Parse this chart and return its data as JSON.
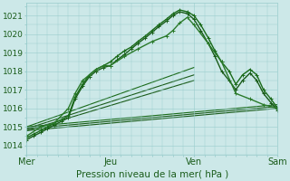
{
  "bg_color": "#cce8e8",
  "grid_color": "#99cccc",
  "line_color": "#1a5c1a",
  "xlim": [
    0,
    3
  ],
  "ylim": [
    1013.5,
    1021.7
  ],
  "yticks": [
    1014,
    1015,
    1016,
    1017,
    1018,
    1019,
    1020,
    1021
  ],
  "xtick_labels": [
    "Mer",
    "Jeu",
    "Ven",
    "Sam"
  ],
  "xtick_positions": [
    0,
    1,
    2,
    3
  ],
  "xlabel": "Pression niveau de la mer( hPa )",
  "xlabel_fontsize": 7.5,
  "ytick_fontsize": 6.5,
  "xtick_fontsize": 7,
  "figwidth": 3.2,
  "figheight": 2.0,
  "dpi": 100,
  "marker_lines": [
    {
      "x": [
        0.0,
        0.08,
        0.17,
        0.25,
        0.33,
        0.42,
        0.5,
        0.58,
        0.67,
        0.75,
        0.83,
        0.92,
        1.0,
        1.08,
        1.17,
        1.25,
        1.33,
        1.42,
        1.5,
        1.58,
        1.67,
        1.75,
        1.83,
        1.92,
        2.0,
        2.08,
        2.17,
        2.25,
        2.33,
        2.42,
        2.5,
        2.58,
        2.67,
        2.75,
        2.83,
        2.92,
        3.0
      ],
      "y": [
        1014.3,
        1014.5,
        1014.7,
        1014.9,
        1015.1,
        1015.3,
        1015.5,
        1016.5,
        1017.2,
        1017.7,
        1018.0,
        1018.2,
        1018.3,
        1018.6,
        1018.9,
        1019.2,
        1019.5,
        1019.8,
        1020.1,
        1020.4,
        1020.7,
        1021.0,
        1021.2,
        1021.1,
        1020.8,
        1020.2,
        1019.5,
        1018.8,
        1018.0,
        1017.5,
        1017.0,
        1017.5,
        1017.9,
        1017.5,
        1016.8,
        1016.3,
        1015.9
      ],
      "color": "#1a5c1a",
      "lw": 1.0,
      "ms": 3.5
    },
    {
      "x": [
        0.0,
        0.08,
        0.17,
        0.25,
        0.33,
        0.42,
        0.5,
        0.58,
        0.67,
        0.75,
        0.83,
        0.92,
        1.0,
        1.08,
        1.17,
        1.25,
        1.33,
        1.42,
        1.5,
        1.58,
        1.67,
        1.75,
        1.83,
        1.92,
        2.0,
        2.08,
        2.17,
        2.25,
        2.33,
        2.42,
        2.5,
        2.58,
        2.67,
        2.75,
        2.83,
        2.92,
        3.0
      ],
      "y": [
        1014.4,
        1014.6,
        1014.8,
        1015.0,
        1015.2,
        1015.4,
        1015.6,
        1016.6,
        1017.3,
        1017.8,
        1018.1,
        1018.3,
        1018.5,
        1018.8,
        1019.1,
        1019.3,
        1019.6,
        1019.9,
        1020.2,
        1020.5,
        1020.8,
        1021.1,
        1021.3,
        1021.2,
        1021.0,
        1020.5,
        1019.8,
        1019.1,
        1018.5,
        1018.0,
        1017.3,
        1017.8,
        1018.1,
        1017.8,
        1017.0,
        1016.5,
        1016.0
      ],
      "color": "#1a6b1a",
      "lw": 1.0,
      "ms": 3.5
    },
    {
      "x": [
        0.0,
        0.17,
        0.33,
        0.5,
        0.58,
        0.67,
        0.75,
        0.83,
        0.92,
        1.0,
        1.17,
        1.33,
        1.5,
        1.67,
        1.75,
        1.83,
        1.92,
        2.0,
        2.17,
        2.33,
        2.5,
        2.67,
        2.83,
        3.0
      ],
      "y": [
        1014.5,
        1015.0,
        1015.2,
        1016.0,
        1016.8,
        1017.5,
        1017.8,
        1018.1,
        1018.3,
        1018.3,
        1018.8,
        1019.2,
        1019.6,
        1019.9,
        1020.2,
        1020.6,
        1020.9,
        1020.5,
        1019.5,
        1018.5,
        1016.8,
        1016.5,
        1016.2,
        1016.0
      ],
      "color": "#2a7a2a",
      "lw": 1.0,
      "ms": 3.5
    }
  ],
  "straight_lines": [
    {
      "x": [
        0.0,
        3.0
      ],
      "y": [
        1014.8,
        1016.0
      ],
      "color": "#1a5c1a",
      "lw": 0.8
    },
    {
      "x": [
        0.0,
        3.0
      ],
      "y": [
        1014.9,
        1016.1
      ],
      "color": "#1a5c1a",
      "lw": 0.8
    },
    {
      "x": [
        0.0,
        3.0
      ],
      "y": [
        1015.0,
        1016.2
      ],
      "color": "#1a6b1a",
      "lw": 0.8
    },
    {
      "x": [
        0.0,
        2.0
      ],
      "y": [
        1014.8,
        1017.5
      ],
      "color": "#1a5c1a",
      "lw": 0.8
    },
    {
      "x": [
        0.0,
        2.0
      ],
      "y": [
        1014.9,
        1017.8
      ],
      "color": "#1a5c1a",
      "lw": 0.8
    },
    {
      "x": [
        0.0,
        2.0
      ],
      "y": [
        1015.0,
        1018.2
      ],
      "color": "#1a6b1a",
      "lw": 0.8
    }
  ]
}
